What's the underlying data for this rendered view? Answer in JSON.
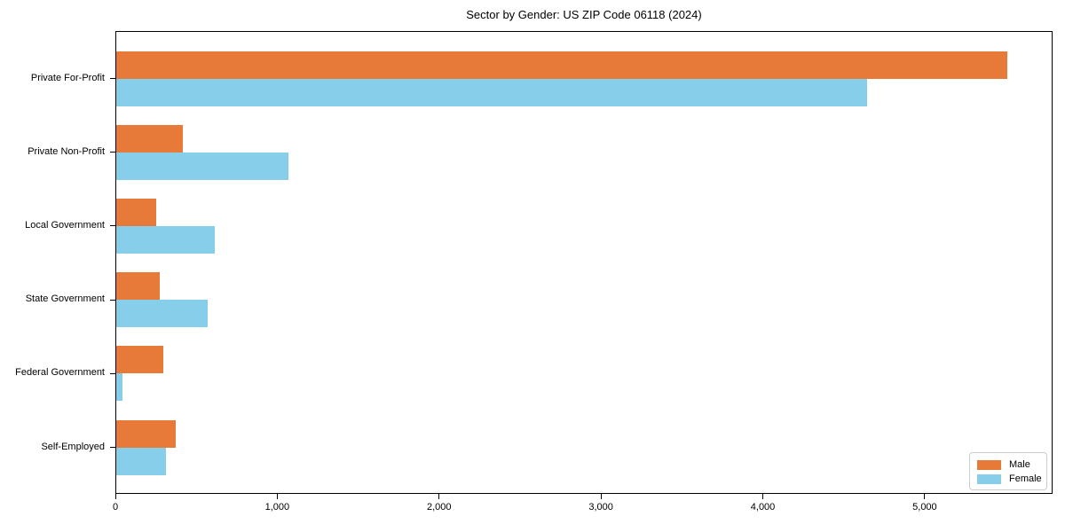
{
  "chart_data": {
    "type": "bar",
    "orientation": "horizontal",
    "title": "Sector by Gender: US ZIP Code 06118 (2024)",
    "categories": [
      "Private For-Profit",
      "Private Non-Profit",
      "Local Government",
      "State Government",
      "Federal Government",
      "Self-Employed"
    ],
    "series": [
      {
        "name": "Male",
        "color": "#e87a39",
        "values": [
          5510,
          415,
          253,
          275,
          295,
          375
        ]
      },
      {
        "name": "Female",
        "color": "#87ceeb",
        "values": [
          4645,
          1068,
          613,
          570,
          44,
          310
        ]
      }
    ],
    "xlabel": "",
    "ylabel": "",
    "xlim": [
      0,
      5790
    ],
    "x_ticks": [
      0,
      1000,
      2000,
      3000,
      4000,
      5000
    ],
    "x_tick_labels": [
      "0",
      "1,000",
      "2,000",
      "3,000",
      "4,000",
      "5,000"
    ],
    "grid": false,
    "background": "#ffffff",
    "legend": {
      "position": "lower right",
      "border_color": "#cccccc"
    }
  }
}
